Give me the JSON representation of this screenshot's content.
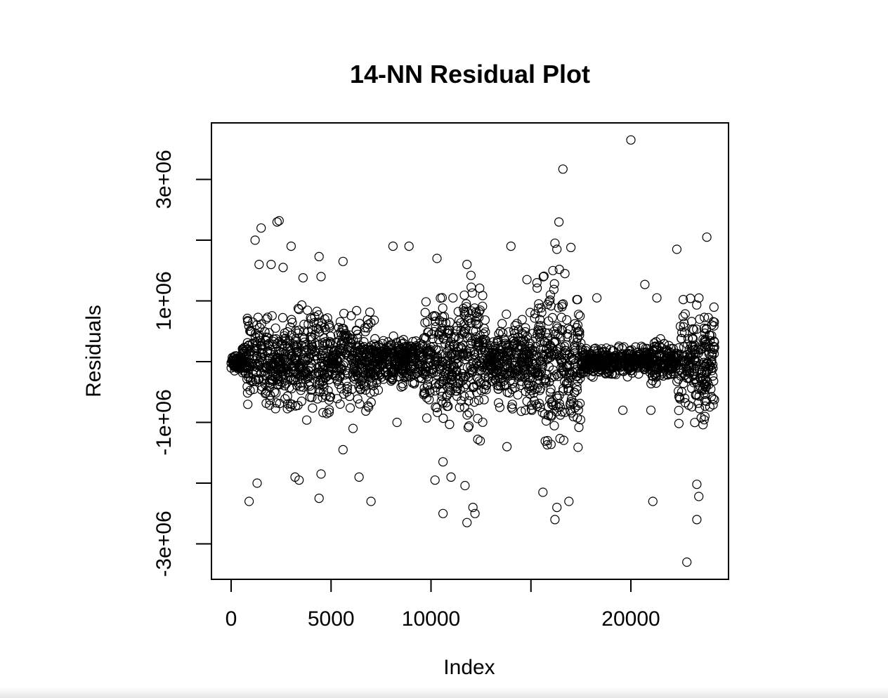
{
  "chart_data": {
    "type": "scatter",
    "title": "14-NN Residual Plot",
    "xlabel": "Index",
    "ylabel": "Residuals",
    "xlim": [
      -1000,
      25000
    ],
    "ylim": [
      -3500000,
      3900000
    ],
    "x_ticks": [
      0,
      5000,
      10000,
      15000,
      20000
    ],
    "x_tick_labels": [
      "0",
      "5000",
      "10000",
      "",
      "20000"
    ],
    "y_ticks": [
      -3000000,
      -2000000,
      -1000000,
      0,
      1000000,
      2000000,
      3000000
    ],
    "y_tick_labels": [
      "-3e+06",
      "",
      "-1e+06",
      "",
      "1e+06",
      "",
      "3e+06"
    ],
    "marker": "open-circle",
    "marker_color": "#000000",
    "n_points_approx": 24000,
    "x_range": [
      0,
      24200
    ],
    "segments": [
      {
        "x": [
          0,
          500
        ],
        "spread": 150000
      },
      {
        "x": [
          500,
          800
        ],
        "spread": 300000
      },
      {
        "x": [
          800,
          3200
        ],
        "spread": 800000
      },
      {
        "x": [
          3200,
          5000
        ],
        "spread": 950000
      },
      {
        "x": [
          5000,
          5300
        ],
        "spread": 300000
      },
      {
        "x": [
          5300,
          7200
        ],
        "spread": 800000
      },
      {
        "x": [
          7200,
          9600
        ],
        "spread": 450000
      },
      {
        "x": [
          9600,
          11000
        ],
        "spread": 1100000
      },
      {
        "x": [
          11000,
          11300
        ],
        "spread": 550000
      },
      {
        "x": [
          11300,
          12800
        ],
        "spread": 1300000
      },
      {
        "x": [
          12800,
          13300
        ],
        "spread": 350000
      },
      {
        "x": [
          13300,
          14300
        ],
        "spread": 750000
      },
      {
        "x": [
          14300,
          15300
        ],
        "spread": 800000
      },
      {
        "x": [
          15300,
          17500
        ],
        "spread": 1450000
      },
      {
        "x": [
          17500,
          21000
        ],
        "spread": 250000
      },
      {
        "x": [
          21000,
          21500
        ],
        "spread": 400000
      },
      {
        "x": [
          21500,
          22300
        ],
        "spread": 300000
      },
      {
        "x": [
          22300,
          24200
        ],
        "spread": 1000000
      }
    ],
    "outliers": [
      [
        20000,
        3650000
      ],
      [
        16600,
        3170000
      ],
      [
        2300,
        2300000
      ],
      [
        2400,
        2320000
      ],
      [
        1500,
        2200000
      ],
      [
        1200,
        2000000
      ],
      [
        23800,
        2050000
      ],
      [
        22300,
        1850000
      ],
      [
        16400,
        2300000
      ],
      [
        16200,
        1950000
      ],
      [
        16300,
        1850000
      ],
      [
        17000,
        1880000
      ],
      [
        8100,
        1900000
      ],
      [
        8900,
        1900000
      ],
      [
        14000,
        1900000
      ],
      [
        3000,
        1900000
      ],
      [
        4400,
        1730000
      ],
      [
        5600,
        1650000
      ],
      [
        10300,
        1700000
      ],
      [
        1400,
        1600000
      ],
      [
        2000,
        1600000
      ],
      [
        2600,
        1550000
      ],
      [
        3600,
        1380000
      ],
      [
        4500,
        1400000
      ],
      [
        11800,
        1600000
      ],
      [
        12000,
        1420000
      ],
      [
        16100,
        1500000
      ],
      [
        16700,
        1450000
      ],
      [
        14800,
        1350000
      ],
      [
        15300,
        1300000
      ],
      [
        20700,
        1270000
      ],
      [
        21300,
        1050000
      ],
      [
        18300,
        1050000
      ],
      [
        11100,
        1050000
      ],
      [
        900,
        -2300000
      ],
      [
        1300,
        -2000000
      ],
      [
        4400,
        -2250000
      ],
      [
        6400,
        -1900000
      ],
      [
        7000,
        -2300000
      ],
      [
        3200,
        -1900000
      ],
      [
        3400,
        -1950000
      ],
      [
        4500,
        -1850000
      ],
      [
        10600,
        -2500000
      ],
      [
        11800,
        -2650000
      ],
      [
        12200,
        -2500000
      ],
      [
        12100,
        -2400000
      ],
      [
        10200,
        -1950000
      ],
      [
        15600,
        -2150000
      ],
      [
        16200,
        -2600000
      ],
      [
        16300,
        -2400000
      ],
      [
        16900,
        -2300000
      ],
      [
        21100,
        -2300000
      ],
      [
        22800,
        -3300000
      ],
      [
        23300,
        -2600000
      ],
      [
        23400,
        -2220000
      ],
      [
        23300,
        -2020000
      ],
      [
        13800,
        -1400000
      ],
      [
        8300,
        -1000000
      ],
      [
        19600,
        -800000
      ],
      [
        21000,
        -800000
      ],
      [
        5600,
        -1450000
      ],
      [
        6100,
        -1100000
      ],
      [
        11700,
        -2040000
      ],
      [
        11000,
        -1900000
      ],
      [
        10600,
        -1650000
      ]
    ]
  }
}
